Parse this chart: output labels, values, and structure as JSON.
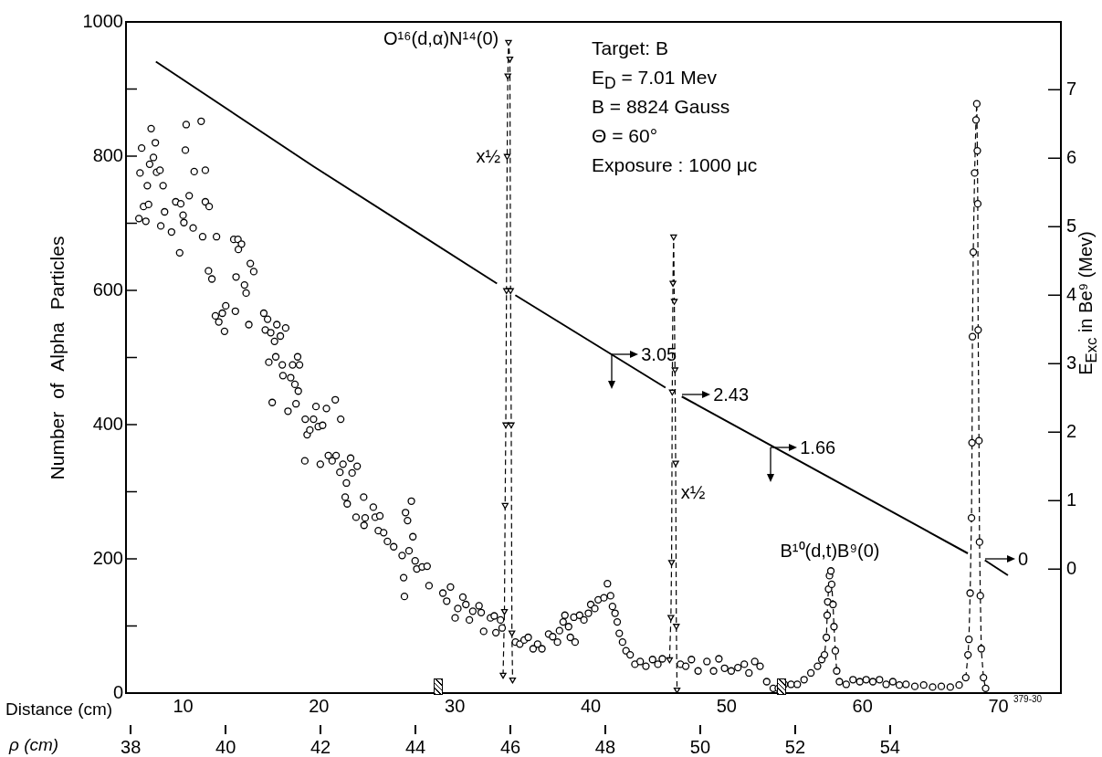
{
  "chart_data": {
    "type": "scatter",
    "xlabel": "Distance (cm)",
    "x2label": "ρ (cm)",
    "ylabel": "Number of Alpha Particles",
    "y2label": "E$_{Exc}$ in Be⁹ (Mev)",
    "xlim": [
      5.8,
      74.6
    ],
    "xticks": [
      10,
      20,
      30,
      40,
      50,
      60,
      70
    ],
    "x2lim": [
      37.9,
      57.6
    ],
    "x2ticks": [
      38,
      40,
      42,
      44,
      46,
      48,
      50,
      52,
      54
    ],
    "ylim": [
      0,
      1000
    ],
    "yticks": [
      0,
      {
        "value": 100,
        "label": null
      },
      200,
      {
        "value": 300,
        "label": null
      },
      400,
      {
        "value": 500,
        "label": null
      },
      600,
      {
        "value": 700,
        "label": null
      },
      800,
      {
        "value": 900,
        "label": null
      },
      1000
    ],
    "y2lim": [
      -1.81,
      7.99
    ],
    "y2ticks": [
      0,
      1,
      2,
      3,
      4,
      5,
      6,
      7
    ],
    "grid": false,
    "legend": false,
    "series": [
      {
        "type": "scatter",
        "color": "#000000",
        "marker": "circle",
        "x": [
          6.75,
          6.95,
          6.83,
          7.09,
          7.26,
          7.46,
          7.37,
          7.54,
          7.65,
          7.82,
          7.96,
          8.05,
          8.3,
          8.53,
          8.64,
          8.36,
          9.15,
          9.46,
          9.75,
          9.83,
          10.0,
          10.06,
          10.23,
          10.17,
          10.45,
          10.74,
          10.82,
          11.33,
          11.44,
          11.64,
          11.64,
          11.92,
          11.87,
          12.12,
          12.38,
          12.63,
          12.89,
          13.05,
          13.14,
          12.46,
          13.73,
          14.04,
          14.3,
          14.07,
          13.9,
          14.52,
          14.64,
          13.85,
          14.84,
          14.95,
          15.2,
          15.94,
          16.22,
          16.05,
          16.45,
          16.73,
          16.9,
          17.16,
          17.55,
          16.31,
          16.82,
          17.3,
          18.06,
          18.43,
          18.57,
          16.56,
          17.35,
          17.92,
          18.23,
          18.48,
          18.31,
          17.72,
          18.99,
          19.13,
          19.33,
          19.6,
          19.78,
          19.95,
          20.27,
          20.55,
          21.2,
          21.6,
          18.96,
          20.1,
          20.69,
          20.97,
          21.26,
          21.54,
          21.77,
          22.02,
          22.33,
          22.44,
          22.81,
          21.93,
          22.08,
          22.73,
          23.29,
          23.4,
          23.32,
          24.0,
          24.14,
          24.48,
          24.37,
          24.76,
          25.04,
          25.5,
          26.12,
          26.37,
          26.8,
          26.52,
          26.91,
          26.63,
          27.08,
          27.2,
          27.59,
          27.96,
          26.23,
          26.29,
          28.1,
          29.12,
          29.4,
          29.68,
          30.02,
          30.22,
          30.59,
          30.81,
          31.07,
          31.32,
          31.78,
          31.94,
          32.12,
          32.62,
          32.9,
          33.02,
          33.36,
          33.48,
          34.46,
          34.78,
          35.1,
          35.4,
          35.76,
          36.09,
          36.41,
          36.9,
          37.2,
          37.55,
          37.7,
          37.97,
          38.1,
          38.37,
          38.5,
          38.85,
          38.76,
          39.18,
          39.5,
          39.83,
          40.0,
          40.3,
          40.55,
          40.97,
          41.23,
          41.46,
          41.6,
          41.79,
          41.95,
          42.1,
          42.34,
          42.6,
          42.9,
          43.25,
          43.64,
          44.06,
          44.55,
          44.94,
          45.27,
          46.6,
          46.99,
          47.41,
          47.9,
          48.55,
          49.04,
          49.43,
          49.85,
          50.34,
          50.83,
          51.3,
          51.64,
          52.07,
          52.46,
          52.95,
          53.43,
          53.8,
          54.25,
          54.74,
          55.2,
          55.7,
          56.2,
          56.69,
          58.3,
          58.8,
          59.3,
          59.8,
          60.27,
          60.76,
          61.25,
          61.74,
          62.23,
          62.71,
          63.2,
          63.85,
          64.5,
          65.16,
          65.8,
          66.46,
          67.11
        ],
        "values": [
          707,
          812,
          775,
          725,
          703,
          728,
          756,
          788,
          841,
          798,
          820,
          776,
          779,
          756,
          717,
          696,
          687,
          732,
          656,
          729,
          712,
          701,
          847,
          809,
          741,
          693,
          777,
          852,
          680,
          779,
          732,
          725,
          629,
          617,
          562,
          553,
          566,
          539,
          577,
          680,
          676,
          676,
          669,
          661,
          620,
          608,
          596,
          569,
          549,
          640,
          628,
          566,
          557,
          541,
          537,
          524,
          549,
          532,
          544,
          493,
          501,
          489,
          489,
          501,
          489,
          433,
          473,
          470,
          460,
          450,
          431,
          420,
          408,
          385,
          392,
          408,
          427,
          397,
          399,
          424,
          437,
          408,
          346,
          341,
          354,
          346,
          354,
          329,
          341,
          313,
          350,
          328,
          338,
          292,
          282,
          262,
          292,
          261,
          250,
          277,
          262,
          264,
          242,
          239,
          226,
          218,
          205,
          269,
          286,
          257,
          233,
          212,
          197,
          185,
          188,
          189,
          172,
          144,
          160,
          149,
          137,
          158,
          112,
          126,
          143,
          132,
          109,
          122,
          130,
          120,
          92,
          112,
          115,
          90,
          109,
          97,
          76,
          73,
          79,
          83,
          66,
          73,
          66,
          88,
          84,
          76,
          93,
          106,
          116,
          99,
          83,
          76,
          113,
          116,
          109,
          119,
          132,
          126,
          139,
          142,
          163,
          145,
          129,
          119,
          106,
          89,
          76,
          63,
          57,
          43,
          47,
          40,
          50,
          43,
          51,
          43,
          40,
          50,
          33,
          47,
          33,
          51,
          37,
          33,
          38,
          43,
          30,
          47,
          40,
          17,
          7,
          7,
          13,
          13,
          13,
          20,
          30,
          40,
          17,
          13,
          20,
          17,
          20,
          17,
          20,
          13,
          17,
          12,
          13,
          10,
          12,
          9,
          10,
          9,
          12
        ]
      },
      {
        "type": "line",
        "color": "#000000",
        "marker": "circle",
        "line_style": "dashed",
        "x": [
          57.0,
          57.2,
          57.34,
          57.4,
          57.44,
          57.5,
          57.57,
          57.67,
          57.73,
          57.83,
          57.9,
          58.0,
          58.1
        ],
        "values": [
          50,
          57,
          83,
          116,
          136,
          155,
          175,
          182,
          162,
          132,
          99,
          63,
          33
        ]
      },
      {
        "type": "line",
        "color": "#000000",
        "marker": "triangle",
        "line_style": "dashed",
        "x": [
          33.55,
          33.65,
          33.7,
          33.75,
          33.8,
          33.85,
          33.9,
          33.95,
          34.05,
          34.1,
          34.15,
          34.2,
          34.25
        ],
        "values": [
          27,
          122,
          280,
          400,
          600,
          800,
          920,
          970,
          945,
          600,
          400,
          90,
          20
        ]
      },
      {
        "type": "line",
        "color": "#000000",
        "marker": "triangle",
        "line_style": "dashed",
        "x": [
          45.8,
          45.9,
          45.95,
          46.0,
          46.05,
          46.1,
          46.15,
          46.2,
          46.25,
          46.3,
          46.35
        ],
        "values": [
          50,
          113,
          195,
          449,
          611,
          680,
          584,
          482,
          343,
          100,
          5
        ]
      },
      {
        "type": "line",
        "color": "#000000",
        "marker": "circle",
        "line_style": "dashed",
        "x": [
          67.6,
          67.76,
          67.83,
          67.92,
          68.02,
          68.06,
          68.09,
          68.15,
          68.25,
          68.35,
          68.41,
          68.45,
          68.48,
          68.51,
          68.57,
          68.61,
          68.67,
          68.74,
          68.9,
          69.06
        ],
        "values": [
          23,
          57,
          80,
          149,
          261,
          373,
          531,
          657,
          775,
          854,
          878,
          808,
          729,
          541,
          376,
          225,
          145,
          66,
          23,
          7
        ]
      },
      {
        "type": "line",
        "color": "#000000",
        "marker": "none",
        "line_style": "solid",
        "axis": "y2",
        "x": [
          8.0,
          19.6,
          33.1,
          33.8,
          34.45,
          45.5,
          46.1,
          46.7,
          67.75,
          68.4,
          69.0,
          70.7
        ],
        "values": [
          7.41,
          5.88,
          4.17,
          null,
          4.0,
          2.65,
          null,
          2.52,
          0.23,
          null,
          0.13,
          -0.09
        ]
      }
    ],
    "annotations": [
      "Target: B",
      "E$_{D}$ = 7.01 Mev",
      "B = 8824 Gauss",
      "Θ = 60°",
      "Exposure : 1000 μc",
      "379-30",
      {
        "text": "O¹⁶(d,α)N¹⁴(0)",
        "x": 33.9,
        "y": 970
      },
      {
        "text": "x½",
        "x": 33.9,
        "y": 800
      },
      {
        "text": "x½",
        "x": 46.1,
        "y": 300
      },
      {
        "text": "3.05",
        "x": 41.56,
        "y": 505
      },
      {
        "text": "2.43",
        "x": 46.73,
        "y": 445
      },
      {
        "text": "1.66",
        "x": 53.25,
        "y": 366
      },
      {
        "text": "0",
        "x": 69.03,
        "y": 200
      },
      {
        "text": "B¹⁰(d,t)B⁹(0)",
        "x": 57.6,
        "y": 182
      }
    ]
  }
}
